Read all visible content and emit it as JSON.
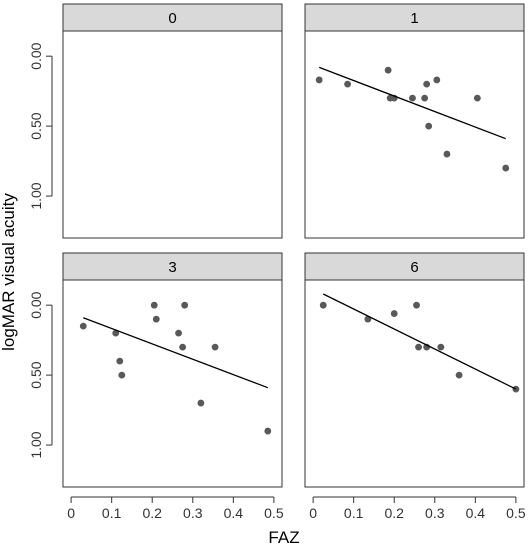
{
  "chart_data": {
    "type": "scatter",
    "layout": "facet-grid-2x2",
    "xlabel": "FAZ",
    "ylabel": "logMAR visual acuity",
    "xlim": [
      -0.02,
      0.52
    ],
    "ylim": [
      1.3,
      -0.18
    ],
    "y_reversed": true,
    "x_ticks": [
      "0",
      "0.1",
      "0.2",
      "0.3",
      "0.4",
      "0.5"
    ],
    "x_tick_values": [
      0,
      0.1,
      0.2,
      0.3,
      0.4,
      0.5
    ],
    "y_ticks": [
      "0.00",
      "0.50",
      "1.00"
    ],
    "y_tick_values": [
      0,
      0.5,
      1.0
    ],
    "point_color": "#595959",
    "strip_color": "#d9d9d9",
    "panels": [
      {
        "label": "0",
        "points": [],
        "fit": null
      },
      {
        "label": "1",
        "points": [
          [
            0.015,
            0.17
          ],
          [
            0.085,
            0.2
          ],
          [
            0.185,
            0.1
          ],
          [
            0.19,
            0.3
          ],
          [
            0.2,
            0.3
          ],
          [
            0.245,
            0.3
          ],
          [
            0.275,
            0.3
          ],
          [
            0.28,
            0.2
          ],
          [
            0.285,
            0.5
          ],
          [
            0.305,
            0.17
          ],
          [
            0.33,
            0.7
          ],
          [
            0.405,
            0.3
          ],
          [
            0.475,
            0.8
          ]
        ],
        "fit": [
          [
            0.015,
            0.08
          ],
          [
            0.475,
            0.59
          ]
        ]
      },
      {
        "label": "3",
        "points": [
          [
            0.03,
            0.15
          ],
          [
            0.11,
            0.2
          ],
          [
            0.12,
            0.4
          ],
          [
            0.125,
            0.5
          ],
          [
            0.205,
            0.0
          ],
          [
            0.21,
            0.1
          ],
          [
            0.265,
            0.2
          ],
          [
            0.275,
            0.3
          ],
          [
            0.28,
            0.0
          ],
          [
            0.355,
            0.3
          ],
          [
            0.32,
            0.7
          ],
          [
            0.485,
            0.9
          ]
        ],
        "fit": [
          [
            0.03,
            0.09
          ],
          [
            0.485,
            0.59
          ]
        ]
      },
      {
        "label": "6",
        "points": [
          [
            0.025,
            0.0
          ],
          [
            0.135,
            0.1
          ],
          [
            0.2,
            0.06
          ],
          [
            0.255,
            0.0
          ],
          [
            0.26,
            0.3
          ],
          [
            0.28,
            0.3
          ],
          [
            0.315,
            0.3
          ],
          [
            0.36,
            0.5
          ],
          [
            0.5,
            0.6
          ]
        ],
        "fit": [
          [
            0.025,
            -0.08
          ],
          [
            0.5,
            0.6
          ]
        ]
      }
    ]
  }
}
